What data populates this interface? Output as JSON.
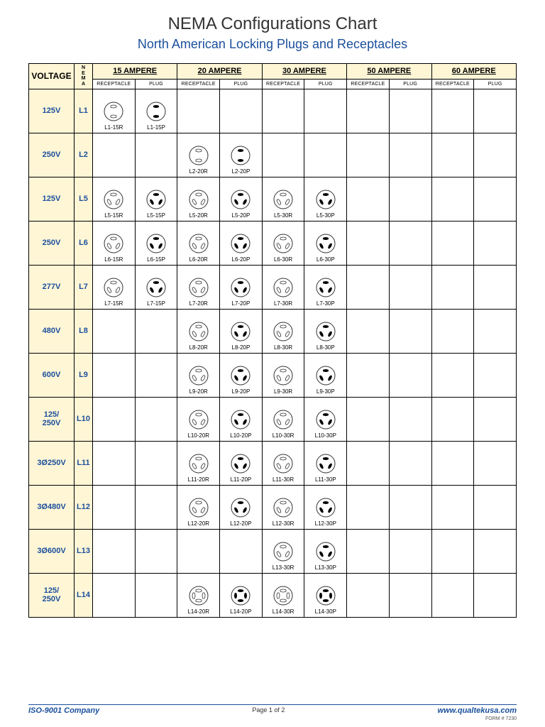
{
  "title": "NEMA Configurations Chart",
  "subtitle": "North American Locking Plugs and Receptacles",
  "colors": {
    "header_bg": "#fff6d6",
    "accent": "#1a4f9c",
    "border": "#000000",
    "bg": "#ffffff"
  },
  "header": {
    "voltage": "VOLTAGE",
    "nema": "N\nE\nM\nA",
    "amperes": [
      "15 AMPERE",
      "20 AMPERE",
      "30 AMPERE",
      "50 AMPERE",
      "60 AMPERE"
    ],
    "sub": {
      "receptacle": "RECEPTACLE",
      "plug": "PLUG"
    }
  },
  "rows": [
    {
      "voltage": "125V",
      "nema": "L1",
      "cells": [
        {
          "l": "L1-15R",
          "t": "R2"
        },
        {
          "l": "L1-15P",
          "t": "P2"
        },
        null,
        null,
        null,
        null,
        null,
        null,
        null,
        null
      ]
    },
    {
      "voltage": "250V",
      "nema": "L2",
      "cells": [
        null,
        null,
        {
          "l": "L2-20R",
          "t": "R2"
        },
        {
          "l": "L2-20P",
          "t": "P2"
        },
        null,
        null,
        null,
        null,
        null,
        null
      ]
    },
    {
      "voltage": "125V",
      "nema": "L5",
      "cells": [
        {
          "l": "L5-15R",
          "t": "R3"
        },
        {
          "l": "L5-15P",
          "t": "P3"
        },
        {
          "l": "L5-20R",
          "t": "R3"
        },
        {
          "l": "L5-20P",
          "t": "P3"
        },
        {
          "l": "L5-30R",
          "t": "R3"
        },
        {
          "l": "L5-30P",
          "t": "P3"
        },
        null,
        null,
        null,
        null
      ]
    },
    {
      "voltage": "250V",
      "nema": "L6",
      "cells": [
        {
          "l": "L6-15R",
          "t": "R3"
        },
        {
          "l": "L6-15P",
          "t": "P3"
        },
        {
          "l": "L6-20R",
          "t": "R3"
        },
        {
          "l": "L6-20P",
          "t": "P3"
        },
        {
          "l": "L6-30R",
          "t": "R3"
        },
        {
          "l": "L6-30P",
          "t": "P3"
        },
        null,
        null,
        null,
        null
      ]
    },
    {
      "voltage": "277V",
      "nema": "L7",
      "cells": [
        {
          "l": "L7-15R",
          "t": "R3"
        },
        {
          "l": "L7-15P",
          "t": "P3"
        },
        {
          "l": "L7-20R",
          "t": "R3"
        },
        {
          "l": "L7-20P",
          "t": "P3"
        },
        {
          "l": "L7-30R",
          "t": "R3"
        },
        {
          "l": "L7-30P",
          "t": "P3"
        },
        null,
        null,
        null,
        null
      ]
    },
    {
      "voltage": "480V",
      "nema": "L8",
      "cells": [
        null,
        null,
        {
          "l": "L8-20R",
          "t": "R3"
        },
        {
          "l": "L8-20P",
          "t": "P3"
        },
        {
          "l": "L8-30R",
          "t": "R3"
        },
        {
          "l": "L8-30P",
          "t": "P3"
        },
        null,
        null,
        null,
        null
      ]
    },
    {
      "voltage": "600V",
      "nema": "L9",
      "cells": [
        null,
        null,
        {
          "l": "L9-20R",
          "t": "R3"
        },
        {
          "l": "L9-20P",
          "t": "P3"
        },
        {
          "l": "L9-30R",
          "t": "R3"
        },
        {
          "l": "L9-30P",
          "t": "P3"
        },
        null,
        null,
        null,
        null
      ]
    },
    {
      "voltage": "125/\n250V",
      "nema": "L10",
      "cells": [
        null,
        null,
        {
          "l": "L10-20R",
          "t": "R3"
        },
        {
          "l": "L10-20P",
          "t": "P3"
        },
        {
          "l": "L10-30R",
          "t": "R3"
        },
        {
          "l": "L10-30P",
          "t": "P3"
        },
        null,
        null,
        null,
        null
      ]
    },
    {
      "voltage": "3Ø250V",
      "nema": "L11",
      "cells": [
        null,
        null,
        {
          "l": "L11-20R",
          "t": "R3"
        },
        {
          "l": "L11-20P",
          "t": "P3"
        },
        {
          "l": "L11-30R",
          "t": "R3"
        },
        {
          "l": "L11-30P",
          "t": "P3"
        },
        null,
        null,
        null,
        null
      ]
    },
    {
      "voltage": "3Ø480V",
      "nema": "L12",
      "cells": [
        null,
        null,
        {
          "l": "L12-20R",
          "t": "R3"
        },
        {
          "l": "L12-20P",
          "t": "P3"
        },
        {
          "l": "L12-30R",
          "t": "R3"
        },
        {
          "l": "L12-30P",
          "t": "P3"
        },
        null,
        null,
        null,
        null
      ]
    },
    {
      "voltage": "3Ø600V",
      "nema": "L13",
      "cells": [
        null,
        null,
        null,
        null,
        {
          "l": "L13-30R",
          "t": "R3"
        },
        {
          "l": "L13-30P",
          "t": "P3"
        },
        null,
        null,
        null,
        null
      ]
    },
    {
      "voltage": "125/\n250V",
      "nema": "L14",
      "cells": [
        null,
        null,
        {
          "l": "L14-20R",
          "t": "R4"
        },
        {
          "l": "L14-20P",
          "t": "P4"
        },
        {
          "l": "L14-30R",
          "t": "R4"
        },
        {
          "l": "L14-30P",
          "t": "P4"
        },
        null,
        null,
        null,
        null
      ]
    }
  ],
  "footer": {
    "left": "ISO-9001 Company",
    "center": "Page 1 of 2",
    "right": "www.qualtekusa.com",
    "form": "FORM # 7230"
  }
}
